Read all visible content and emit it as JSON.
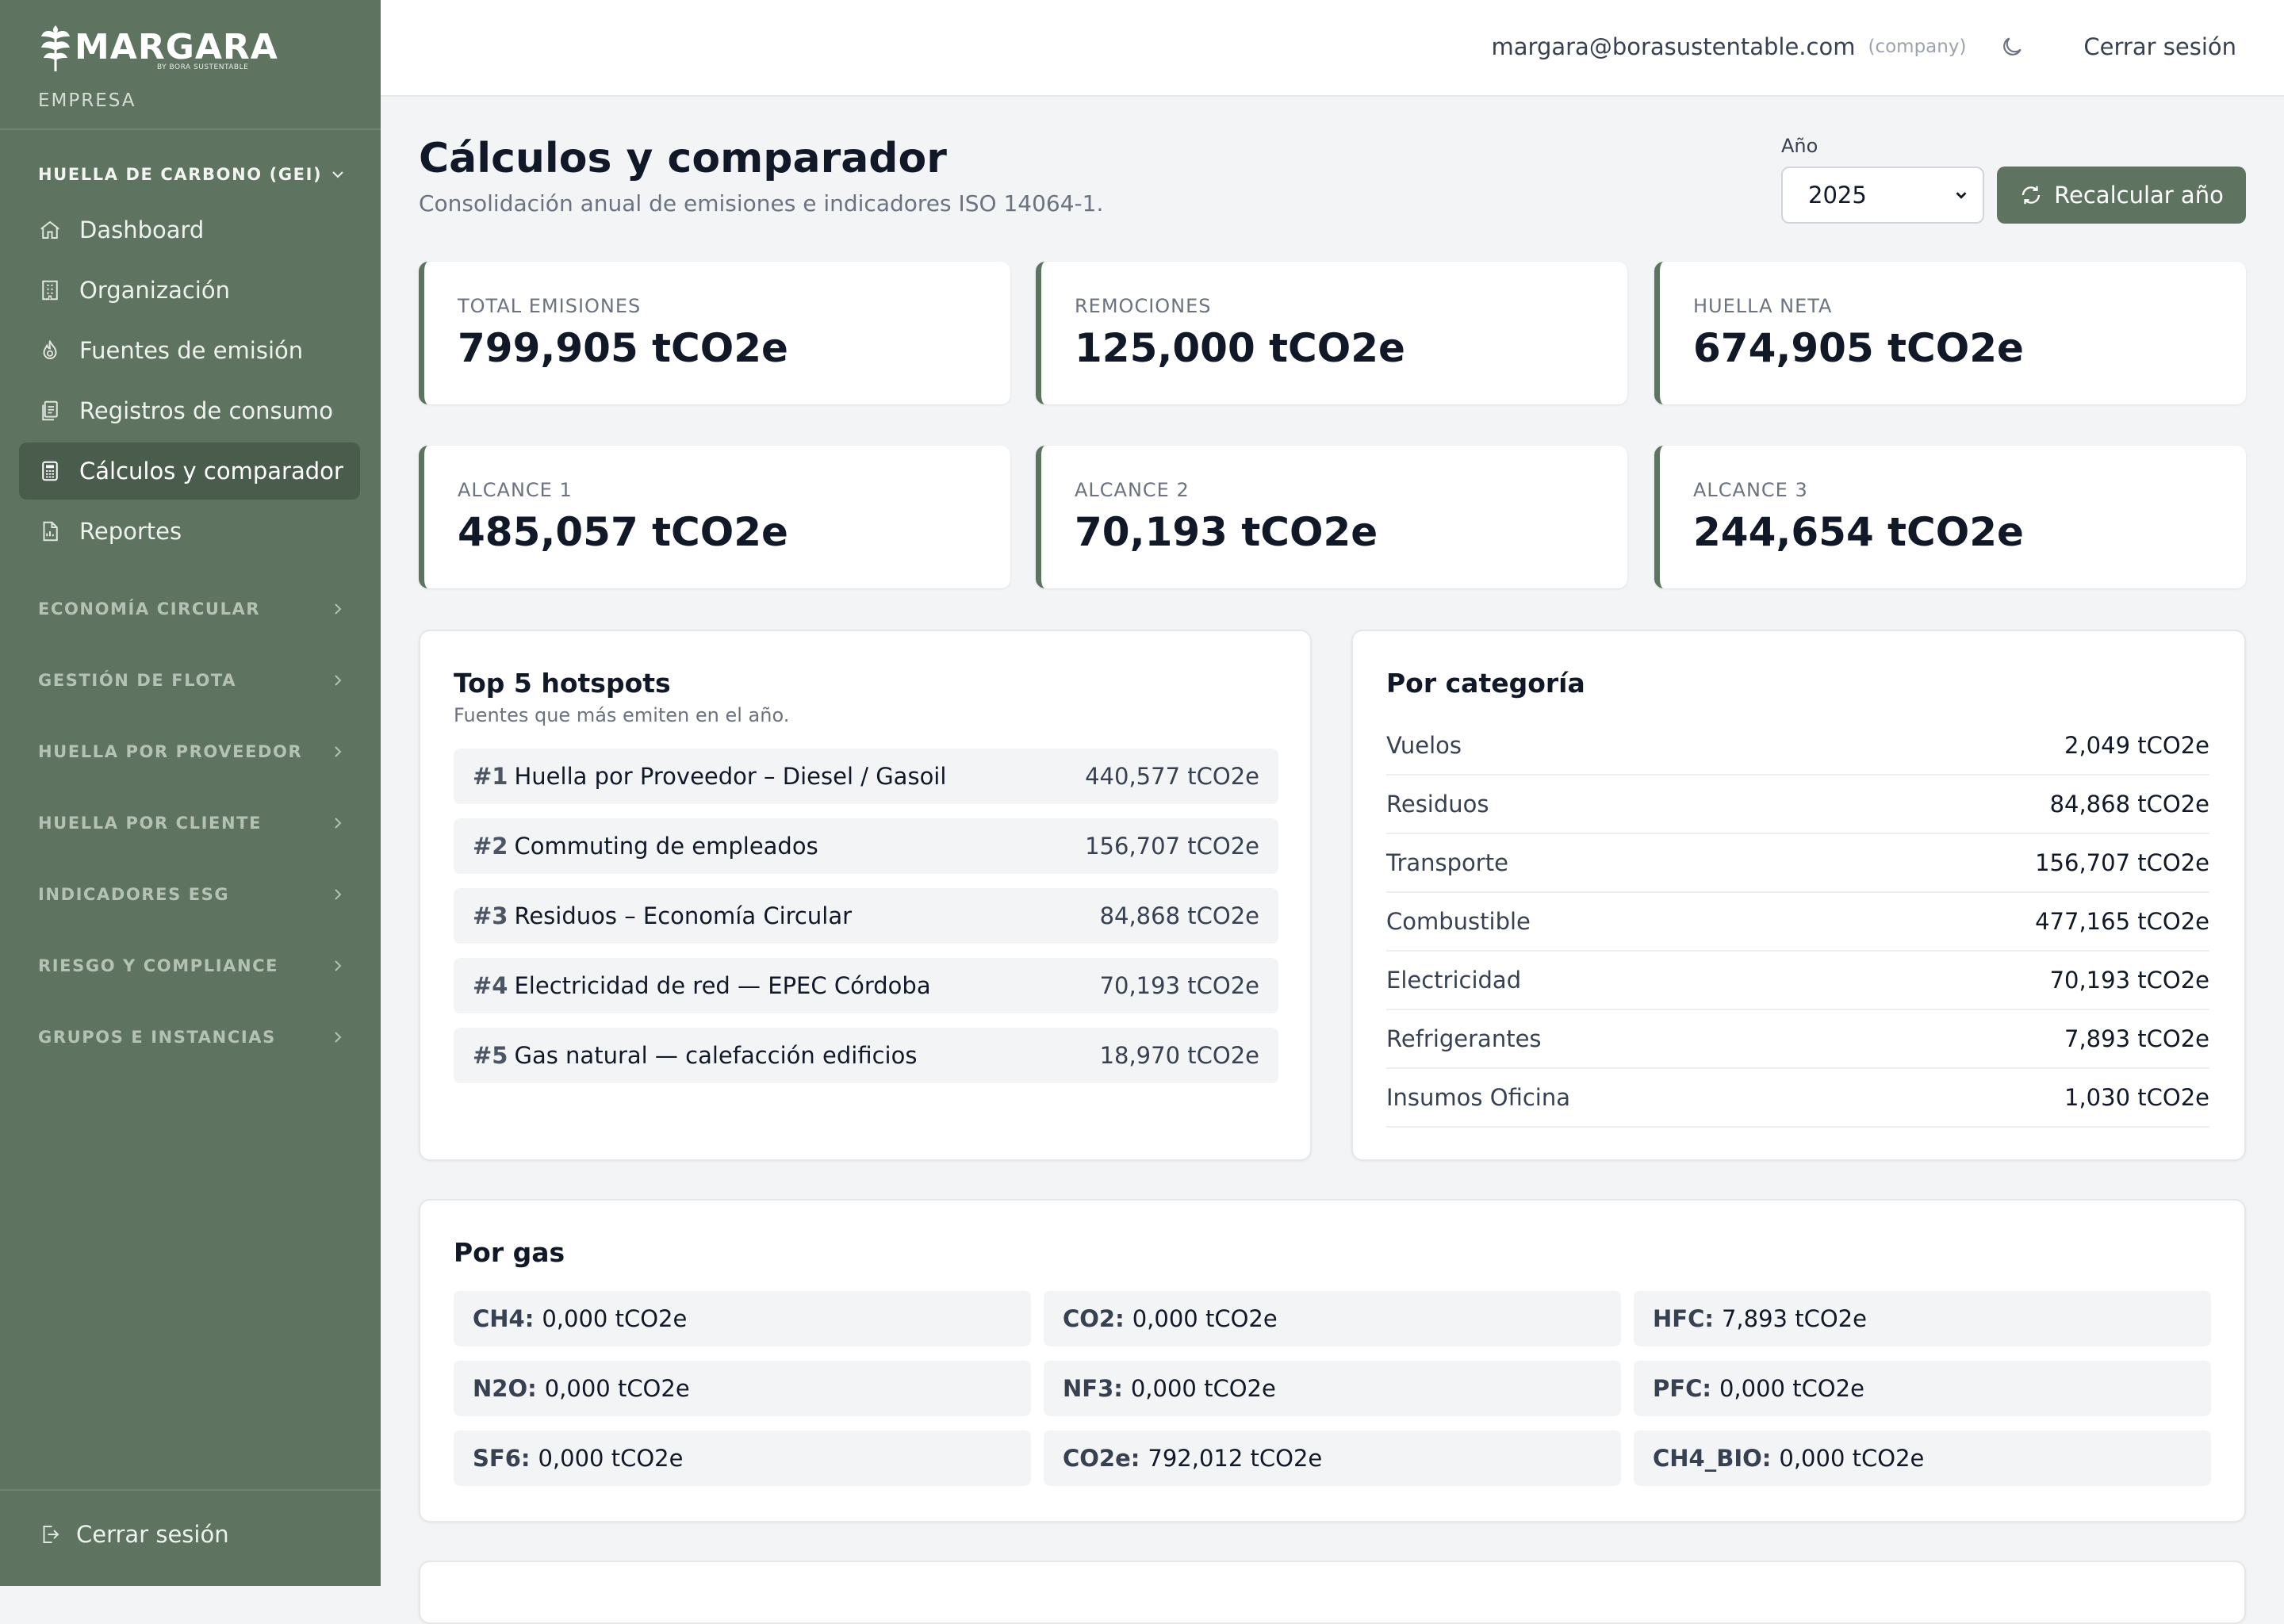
{
  "brand": {
    "name": "MARGARA",
    "byline": "BY BORA SUSTENTABLE",
    "subtitle": "EMPRESA"
  },
  "sidebar": {
    "open_section": "HUELLA DE CARBONO (GEI)",
    "items": [
      {
        "label": "Dashboard",
        "icon": "home-icon"
      },
      {
        "label": "Organización",
        "icon": "building-icon"
      },
      {
        "label": "Fuentes de emisión",
        "icon": "flame-icon"
      },
      {
        "label": "Registros de consumo",
        "icon": "receipt-icon"
      },
      {
        "label": "Cálculos y comparador",
        "icon": "calculator-icon",
        "active": true
      },
      {
        "label": "Reportes",
        "icon": "file-chart-icon"
      }
    ],
    "sections": [
      "ECONOMÍA CIRCULAR",
      "GESTIÓN DE FLOTA",
      "HUELLA POR PROVEEDOR",
      "HUELLA POR CLIENTE",
      "INDICADORES ESG",
      "RIESGO Y COMPLIANCE",
      "GRUPOS E INSTANCIAS"
    ],
    "logout": "Cerrar sesión"
  },
  "topbar": {
    "email": "margara@borasustentable.com",
    "role": "(company)",
    "logout": "Cerrar sesión"
  },
  "page": {
    "title": "Cálculos y comparador",
    "subtitle": "Consolidación anual de emisiones e indicadores ISO 14064-1.",
    "year_label": "Año",
    "year_value": "2025",
    "recalc_label": "Recalcular año"
  },
  "stats": [
    {
      "label": "TOTAL EMISIONES",
      "value": "799,905 tCO2e"
    },
    {
      "label": "REMOCIONES",
      "value": "125,000 tCO2e"
    },
    {
      "label": "HUELLA NETA",
      "value": "674,905 tCO2e"
    },
    {
      "label": "ALCANCE 1",
      "value": "485,057 tCO2e"
    },
    {
      "label": "ALCANCE 2",
      "value": "70,193 tCO2e"
    },
    {
      "label": "ALCANCE 3",
      "value": "244,654 tCO2e"
    }
  ],
  "hotspots": {
    "title": "Top 5 hotspots",
    "subtitle": "Fuentes que más emiten en el año.",
    "items": [
      {
        "rank": "#1",
        "name": "Huella por Proveedor – Diesel / Gasoil",
        "value": "440,577 tCO2e"
      },
      {
        "rank": "#2",
        "name": "Commuting de empleados",
        "value": "156,707 tCO2e"
      },
      {
        "rank": "#3",
        "name": "Residuos – Economía Circular",
        "value": "84,868 tCO2e"
      },
      {
        "rank": "#4",
        "name": "Electricidad de red — EPEC Córdoba",
        "value": "70,193 tCO2e"
      },
      {
        "rank": "#5",
        "name": "Gas natural — calefacción edificios",
        "value": "18,970 tCO2e"
      }
    ]
  },
  "categories": {
    "title": "Por categoría",
    "items": [
      {
        "name": "Vuelos",
        "value": "2,049 tCO2e"
      },
      {
        "name": "Residuos",
        "value": "84,868 tCO2e"
      },
      {
        "name": "Transporte",
        "value": "156,707 tCO2e"
      },
      {
        "name": "Combustible",
        "value": "477,165 tCO2e"
      },
      {
        "name": "Electricidad",
        "value": "70,193 tCO2e"
      },
      {
        "name": "Refrigerantes",
        "value": "7,893 tCO2e"
      },
      {
        "name": "Insumos Oficina",
        "value": "1,030 tCO2e"
      }
    ]
  },
  "gases": {
    "title": "Por gas",
    "items": [
      {
        "key": "CH4:",
        "value": "0,000 tCO2e"
      },
      {
        "key": "CO2:",
        "value": "0,000 tCO2e"
      },
      {
        "key": "HFC:",
        "value": "7,893 tCO2e"
      },
      {
        "key": "N2O:",
        "value": "0,000 tCO2e"
      },
      {
        "key": "NF3:",
        "value": "0,000 tCO2e"
      },
      {
        "key": "PFC:",
        "value": "0,000 tCO2e"
      },
      {
        "key": "SF6:",
        "value": "0,000 tCO2e"
      },
      {
        "key": "CO2e:",
        "value": "792,012 tCO2e"
      },
      {
        "key": "CH4_BIO:",
        "value": "0,000 tCO2e"
      }
    ]
  },
  "colors": {
    "sidebar": "#5f7361",
    "sidebar_active": "#4a5d4c",
    "accent": "#5f7361"
  }
}
